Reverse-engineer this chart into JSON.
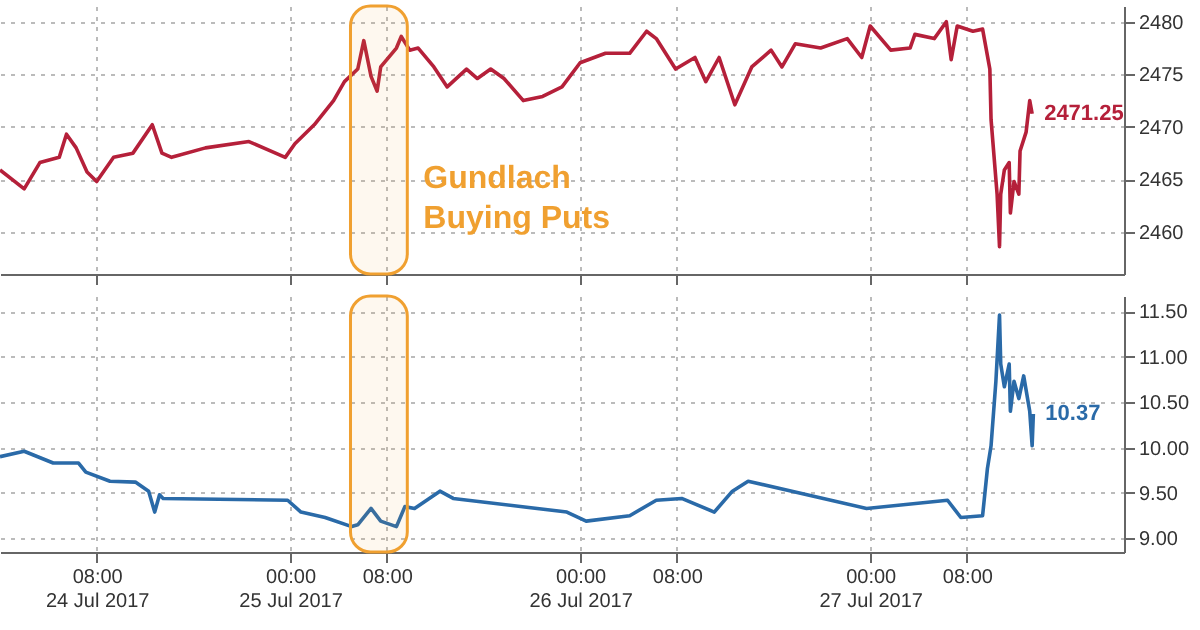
{
  "chart_data": [
    {
      "type": "line",
      "grid": true,
      "tick_labels": "y",
      "xlim": [
        "2017-07-24T00:00",
        "2017-07-27T21:00"
      ],
      "ylim": [
        2456,
        2481.5
      ],
      "xticks": [
        {
          "value": "2017-07-24T08:00",
          "label": null
        },
        {
          "value": "2017-07-25T00:00",
          "label": null
        },
        {
          "value": "2017-07-25T08:00",
          "label": null
        },
        {
          "value": "2017-07-26T00:00",
          "label": null
        },
        {
          "value": "2017-07-26T08:00",
          "label": null
        },
        {
          "value": "2017-07-27T00:00",
          "label": null
        },
        {
          "value": "2017-07-27T08:00",
          "label": null
        }
      ],
      "yticks": [
        2460,
        2465,
        2470,
        2475,
        2480
      ],
      "x": [
        "2017-07-24T00:00",
        "2017-07-24T02:00",
        "2017-07-24T03:18",
        "2017-07-24T04:54",
        "2017-07-24T05:30",
        "2017-07-24T06:18",
        "2017-07-24T07:12",
        "2017-07-24T08:00",
        "2017-07-24T09:24",
        "2017-07-24T11:00",
        "2017-07-24T12:36",
        "2017-07-24T13:24",
        "2017-07-24T14:12",
        "2017-07-24T17:00",
        "2017-07-24T20:36",
        "2017-07-24T22:48",
        "2017-07-24T23:36",
        "2017-07-25T00:24",
        "2017-07-25T02:00",
        "2017-07-25T03:36",
        "2017-07-25T04:30",
        "2017-07-25T05:36",
        "2017-07-25T06:06",
        "2017-07-25T06:42",
        "2017-07-25T07:12",
        "2017-07-25T07:30",
        "2017-07-25T08:48",
        "2017-07-25T09:12",
        "2017-07-25T09:54",
        "2017-07-25T10:36",
        "2017-07-25T11:54",
        "2017-07-25T13:00",
        "2017-07-25T14:36",
        "2017-07-25T15:30",
        "2017-07-25T16:36",
        "2017-07-25T17:42",
        "2017-07-25T19:18",
        "2017-07-25T20:54",
        "2017-07-25T22:30",
        "2017-07-26T00:00",
        "2017-07-26T02:06",
        "2017-07-26T04:06",
        "2017-07-26T05:30",
        "2017-07-26T06:18",
        "2017-07-26T07:54",
        "2017-07-26T09:30",
        "2017-07-26T10:24",
        "2017-07-26T11:30",
        "2017-07-26T12:48",
        "2017-07-26T14:12",
        "2017-07-26T15:48",
        "2017-07-26T16:42",
        "2017-07-26T17:48",
        "2017-07-26T19:54",
        "2017-07-26T22:06",
        "2017-07-26T23:18",
        "2017-07-27T00:00",
        "2017-07-27T01:42",
        "2017-07-27T03:18",
        "2017-07-27T03:42",
        "2017-07-27T05:18",
        "2017-07-27T06:18",
        "2017-07-27T06:42",
        "2017-07-27T07:12",
        "2017-07-27T08:30",
        "2017-07-27T09:18",
        "2017-07-27T09:54",
        "2017-07-27T10:00",
        "2017-07-27T10:30",
        "2017-07-27T10:42",
        "2017-07-27T10:48",
        "2017-07-27T11:06",
        "2017-07-27T11:30",
        "2017-07-27T11:36",
        "2017-07-27T11:54",
        "2017-07-27T12:18",
        "2017-07-27T12:24",
        "2017-07-27T12:54",
        "2017-07-27T13:12",
        "2017-07-27T13:24"
      ],
      "series": [
        {
          "color": "#b5203a",
          "values": [
            2465.9,
            2464.1,
            2466.6,
            2467.1,
            2469.3,
            2468.0,
            2465.7,
            2464.8,
            2467.1,
            2467.5,
            2470.2,
            2467.5,
            2467.1,
            2468.0,
            2468.6,
            2467.5,
            2467.1,
            2468.4,
            2470.2,
            2472.5,
            2474.3,
            2475.5,
            2478.2,
            2474.8,
            2473.4,
            2475.7,
            2477.5,
            2478.6,
            2477.3,
            2477.5,
            2475.7,
            2473.8,
            2475.5,
            2474.6,
            2475.5,
            2474.6,
            2472.5,
            2472.9,
            2473.8,
            2476.1,
            2477.0,
            2477.0,
            2479.1,
            2478.4,
            2475.5,
            2476.6,
            2474.3,
            2476.6,
            2472.1,
            2475.7,
            2477.3,
            2475.7,
            2477.9,
            2477.5,
            2478.4,
            2476.6,
            2479.6,
            2477.3,
            2477.5,
            2478.8,
            2478.4,
            2480.0,
            2476.4,
            2479.6,
            2479.1,
            2479.3,
            2475.5,
            2470.7,
            2463.6,
            2458.6,
            2463.6,
            2465.9,
            2466.6,
            2461.8,
            2464.8,
            2463.6,
            2467.7,
            2469.5,
            2472.5,
            2471.25
          ],
          "value_labels": [
            null,
            null,
            null,
            null,
            null,
            null,
            null,
            null,
            null,
            null,
            null,
            null,
            null,
            null,
            null,
            null,
            null,
            null,
            null,
            null,
            null,
            null,
            null,
            null,
            null,
            null,
            null,
            null,
            null,
            null,
            null,
            null,
            null,
            null,
            null,
            null,
            null,
            null,
            null,
            null,
            null,
            null,
            null,
            null,
            null,
            null,
            null,
            null,
            null,
            null,
            null,
            null,
            null,
            null,
            null,
            null,
            null,
            null,
            null,
            null,
            null,
            null,
            null,
            null,
            null,
            null,
            null,
            null,
            null,
            null,
            null,
            null,
            null,
            null,
            null,
            null,
            null,
            null,
            null,
            "2471.25"
          ]
        }
      ],
      "bands": [
        {
          "axis": "x",
          "from": "2017-07-25T05:00",
          "to": "2017-07-25T09:42",
          "label": "Gundlach Buying Puts",
          "color": "#f0a030"
        }
      ]
    },
    {
      "type": "line",
      "grid": true,
      "xlim": [
        "2017-07-24T00:00",
        "2017-07-27T21:00"
      ],
      "ylim": [
        8.85,
        11.67
      ],
      "xticks": [
        {
          "value": "2017-07-24T08:00",
          "label": "08:00\n24 Jul 2017"
        },
        {
          "value": "2017-07-25T00:00",
          "label": "00:00\n25 Jul 2017"
        },
        {
          "value": "2017-07-25T08:00",
          "label": "08:00"
        },
        {
          "value": "2017-07-26T00:00",
          "label": "00:00\n26 Jul 2017"
        },
        {
          "value": "2017-07-26T08:00",
          "label": "08:00"
        },
        {
          "value": "2017-07-27T00:00",
          "label": "00:00\n27 Jul 2017"
        },
        {
          "value": "2017-07-27T08:00",
          "label": "08:00"
        }
      ],
      "yticks": [
        {
          "value": 9,
          "label": "9.00"
        },
        {
          "value": 9.5,
          "label": "9.50"
        },
        {
          "value": 10,
          "label": "10.00"
        },
        {
          "value": 10.5,
          "label": "10.50"
        },
        {
          "value": 11,
          "label": "11.00"
        },
        {
          "value": 11.5,
          "label": "11.50"
        }
      ],
      "x": [
        "2017-07-24T00:00",
        "2017-07-24T02:00",
        "2017-07-24T04:24",
        "2017-07-24T06:30",
        "2017-07-24T07:06",
        "2017-07-24T09:06",
        "2017-07-24T11:12",
        "2017-07-24T12:18",
        "2017-07-24T12:48",
        "2017-07-24T13:12",
        "2017-07-24T13:30",
        "2017-07-24T23:48",
        "2017-07-25T00:54",
        "2017-07-25T02:54",
        "2017-07-25T05:06",
        "2017-07-25T05:36",
        "2017-07-25T06:42",
        "2017-07-25T07:30",
        "2017-07-25T08:48",
        "2017-07-25T09:30",
        "2017-07-25T10:18",
        "2017-07-25T12:24",
        "2017-07-25T13:30",
        "2017-07-25T22:54",
        "2017-07-26T00:30",
        "2017-07-26T04:06",
        "2017-07-26T06:18",
        "2017-07-26T08:24",
        "2017-07-26T11:06",
        "2017-07-26T12:36",
        "2017-07-26T13:54",
        "2017-07-26T23:42",
        "2017-07-27T06:24",
        "2017-07-27T07:30",
        "2017-07-27T09:18",
        "2017-07-27T09:42",
        "2017-07-27T10:00",
        "2017-07-27T10:24",
        "2017-07-27T10:42",
        "2017-07-27T10:48",
        "2017-07-27T11:06",
        "2017-07-27T11:30",
        "2017-07-27T11:36",
        "2017-07-27T11:54",
        "2017-07-27T12:18",
        "2017-07-27T12:42",
        "2017-07-27T13:12",
        "2017-07-27T13:24",
        "2017-07-27T13:30"
      ],
      "series": [
        {
          "color": "#2a6aa8",
          "values": [
            9.9,
            9.96,
            9.83,
            9.83,
            9.73,
            9.63,
            9.62,
            9.52,
            9.29,
            9.48,
            9.44,
            9.42,
            9.29,
            9.23,
            9.13,
            9.15,
            9.33,
            9.19,
            9.13,
            9.35,
            9.33,
            9.52,
            9.44,
            9.29,
            9.19,
            9.25,
            9.42,
            9.44,
            9.29,
            9.52,
            9.63,
            9.33,
            9.42,
            9.23,
            9.25,
            9.77,
            10.02,
            10.73,
            11.46,
            10.92,
            10.67,
            10.92,
            10.4,
            10.73,
            10.54,
            10.79,
            10.4,
            10.02,
            10.37
          ],
          "value_labels": [
            null,
            null,
            null,
            null,
            null,
            null,
            null,
            null,
            null,
            null,
            null,
            null,
            null,
            null,
            null,
            null,
            null,
            null,
            null,
            null,
            null,
            null,
            null,
            null,
            null,
            null,
            null,
            null,
            null,
            null,
            null,
            null,
            null,
            null,
            null,
            null,
            null,
            null,
            null,
            null,
            null,
            null,
            null,
            null,
            null,
            null,
            null,
            null,
            "10.37"
          ]
        }
      ],
      "bands": [
        {
          "axis": "x",
          "from": "2017-07-25T05:00",
          "to": "2017-07-25T09:42",
          "color": "#f0a030"
        }
      ]
    }
  ]
}
